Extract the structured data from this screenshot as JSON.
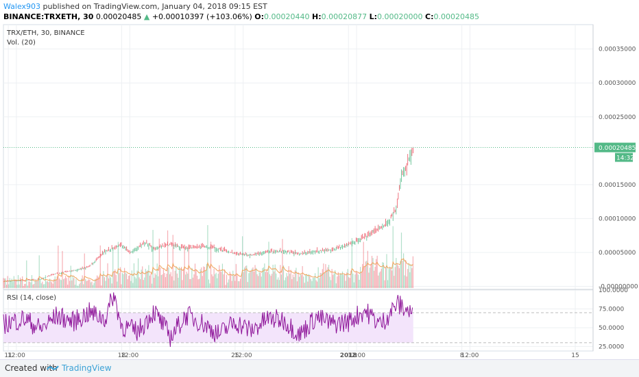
{
  "header": {
    "author": "Walex903",
    "published_text": " published on TradingView.com, January 04, 2018 09:15 EST"
  },
  "ohlc": {
    "symbol": "BINANCE:TRXETH, 30",
    "last": "0.00020485",
    "change": "+0.00010397 (+103.06%)",
    "arrow": "▲",
    "o_label": "O:",
    "o": "0.00020440",
    "h_label": "H:",
    "h": "0.00020877",
    "l_label": "L:",
    "l": "0.00020000",
    "c_label": "C:",
    "c": "0.00020485"
  },
  "colors": {
    "up": "#53b987",
    "down": "#eb4d5c",
    "rsi_line": "#8e1599",
    "rsi_band": "#f3e4fb",
    "vol_ma": "#f0a35a",
    "grid": "#edf0f3"
  },
  "chart_data": [
    {
      "type": "line",
      "title": "TRX/ETH, 30, BINANCE",
      "subtitle": "Vol. (20)",
      "y_ticks": [
        "0.00035000",
        "0.00030000",
        "0.00025000",
        "0.00015000",
        "0.00010000",
        "0.00005000",
        "-0.00000000"
      ],
      "y_tick_values": [
        0.00035,
        0.0003,
        0.00025,
        0.00015,
        0.0001,
        5e-05,
        0
      ],
      "ylim": [
        -4.5e-06,
        0.000386
      ],
      "last_price_label": "0.00020485",
      "last_price_value": 0.00020485,
      "countdown_label": "14:32",
      "x_ticks": [
        "11",
        "12:00",
        "18",
        "12:00",
        "25",
        "12:00",
        "2018",
        "12:00",
        "8",
        "12:00",
        "15"
      ],
      "x_tick_days": [
        11,
        11.5,
        18,
        18.5,
        25,
        25.5,
        32,
        32.5,
        39,
        39.5,
        46
      ],
      "xlim": [
        10.7,
        47.1
      ],
      "x": [
        10.7,
        12.0,
        13.0,
        14.0,
        15.0,
        16.0,
        17.0,
        17.5,
        18.0,
        18.5,
        19.0,
        19.5,
        20.0,
        21.0,
        22.0,
        23.0,
        24.0,
        25.0,
        26.0,
        27.0,
        28.0,
        29.0,
        30.0,
        31.0,
        32.0,
        33.0,
        34.0,
        34.5,
        35.0,
        35.3,
        35.6,
        35.8,
        36.0
      ],
      "close": [
        7.5e-06,
        8.5e-06,
        1.1e-05,
        1.9e-05,
        2.3e-05,
        2.9e-05,
        5.2e-05,
        5.6e-05,
        6.1e-05,
        5e-05,
        5.8e-05,
        6.5e-05,
        5.5e-05,
        6.2e-05,
        5.6e-05,
        5.9e-05,
        5.5e-05,
        4.8e-05,
        4.6e-05,
        5.1e-05,
        5.2e-05,
        4.8e-05,
        5.2e-05,
        5.4e-05,
        6.2e-05,
        7.2e-05,
        8.7e-05,
        9.5e-05,
        0.000118,
        0.00017,
        0.000172,
        0.000196,
        0.00020485
      ]
    },
    {
      "type": "line",
      "title": "RSI (14, close)",
      "y_ticks": [
        "100.0000",
        "75.0000",
        "50.0000",
        "25.0000"
      ],
      "y_tick_values": [
        100,
        75,
        50,
        25
      ],
      "ylim": [
        19,
        101
      ],
      "bands": [
        70,
        30
      ],
      "x": [
        10.7,
        12.0,
        13.0,
        14.0,
        15.0,
        16.0,
        17.0,
        17.5,
        18.0,
        19.0,
        20.0,
        21.0,
        22.0,
        23.0,
        24.0,
        25.0,
        26.0,
        27.0,
        28.0,
        29.0,
        30.0,
        31.0,
        32.0,
        33.0,
        34.0,
        35.0,
        35.5,
        36.0
      ],
      "values": [
        55,
        62,
        48,
        66,
        58,
        70,
        62,
        95,
        52,
        45,
        72,
        38,
        67,
        56,
        41,
        58,
        46,
        62,
        60,
        41,
        64,
        55,
        58,
        73,
        54,
        82,
        75,
        68
      ]
    }
  ]
}
